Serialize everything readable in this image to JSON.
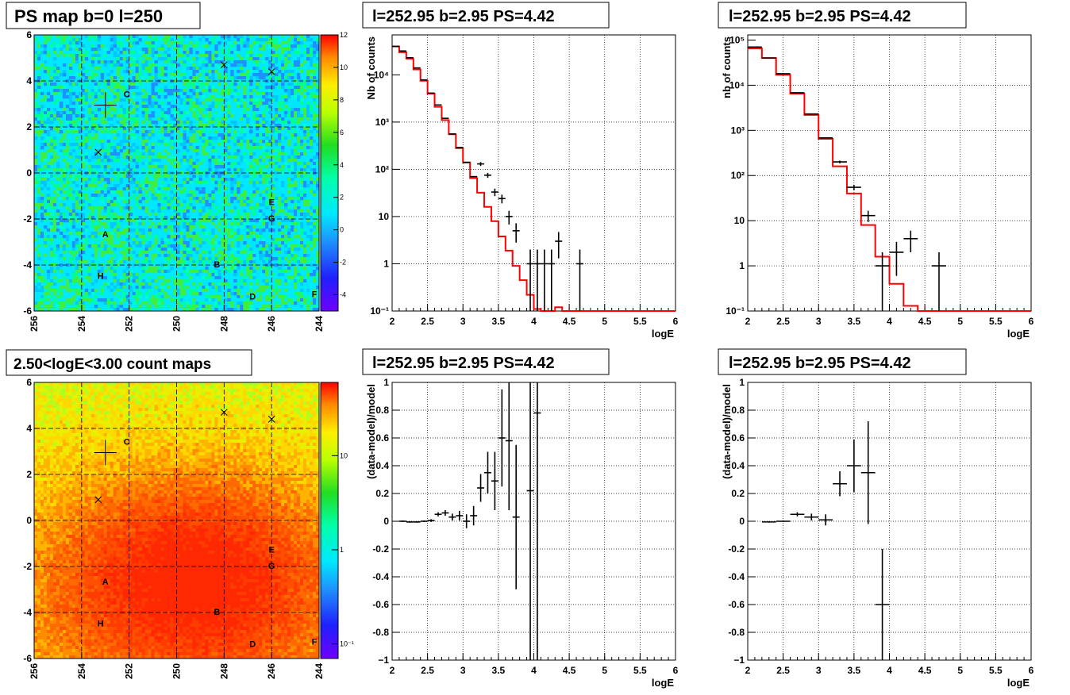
{
  "panels": {
    "ps_map": {
      "title": "PS map b=0 l=250",
      "x_ticks": [
        "256",
        "254",
        "252",
        "250",
        "248",
        "246",
        "244"
      ],
      "y_ticks": [
        "6",
        "4",
        "2",
        "0",
        "-2",
        "-4",
        "-6"
      ],
      "colorbar_ticks": [
        "12",
        "10",
        "8",
        "6",
        "4",
        "2",
        "0",
        "-2",
        "-4"
      ],
      "labels": [
        "A",
        "B",
        "C",
        "D",
        "E",
        "F",
        "G",
        "H"
      ]
    },
    "count_map": {
      "title": "2.50<logE<3.00 count maps",
      "x_ticks": [
        "256",
        "254",
        "252",
        "250",
        "248",
        "246",
        "244"
      ],
      "y_ticks": [
        "6",
        "4",
        "2",
        "0",
        "-2",
        "-4",
        "-6"
      ],
      "colorbar_ticks": [
        "10",
        "1",
        "10⁻¹"
      ],
      "labels": [
        "A",
        "B",
        "C",
        "D",
        "E",
        "F",
        "G",
        "H"
      ]
    },
    "spectrum_1": {
      "title": "l=252.95 b=2.95 PS=4.42",
      "xlabel": "logE",
      "ylabel": "Nb of counts",
      "x_ticks": [
        "2",
        "2.5",
        "3",
        "3.5",
        "4",
        "4.5",
        "5",
        "5.5",
        "6"
      ],
      "y_ticks": [
        "10⁻¹",
        "1",
        "10",
        "10²",
        "10³",
        "10⁴"
      ]
    },
    "spectrum_2": {
      "title": "l=252.95 b=2.95 PS=4.42",
      "xlabel": "logE",
      "ylabel": "nb of counts",
      "x_ticks": [
        "2",
        "2.5",
        "3",
        "3.5",
        "4",
        "4.5",
        "5",
        "5.5",
        "6"
      ],
      "y_ticks": [
        "10⁻¹",
        "1",
        "10",
        "10²",
        "10³",
        "10⁴",
        "10⁵"
      ]
    },
    "residual_1": {
      "title": "l=252.95 b=2.95 PS=4.42",
      "xlabel": "logE",
      "ylabel": "(data-model)/model",
      "x_ticks": [
        "2",
        "2.5",
        "3",
        "3.5",
        "4",
        "4.5",
        "5",
        "5.5",
        "6"
      ],
      "y_ticks": [
        "1",
        "0.8",
        "0.6",
        "0.4",
        "0.2",
        "0",
        "-0.2",
        "-0.4",
        "-0.6",
        "-0.8",
        "−1"
      ]
    },
    "residual_2": {
      "title": "l=252.95 b=2.95 PS=4.42",
      "xlabel": "logE",
      "ylabel": "(data-model)/model",
      "x_ticks": [
        "2",
        "2.5",
        "3",
        "3.5",
        "4",
        "4.5",
        "5",
        "5.5",
        "6"
      ],
      "y_ticks": [
        "1",
        "0.8",
        "0.6",
        "0.4",
        "0.2",
        "0",
        "-0.2",
        "-0.4",
        "-0.6",
        "-0.8",
        "−1"
      ]
    }
  },
  "colors": {
    "model_line": "#ff0000",
    "data_points": "#000000"
  },
  "chart_data": [
    {
      "type": "heatmap",
      "title": "PS map b=0 l=250",
      "xlim": [
        256,
        244
      ],
      "ylim": [
        -6,
        6
      ],
      "zlim": [
        -5,
        12
      ],
      "grid": true,
      "markers_plus": [
        {
          "l": 253.0,
          "b": 2.95
        }
      ],
      "markers_cross": [
        {
          "l": 253.3,
          "b": 0.9
        },
        {
          "l": 248.0,
          "b": 4.7
        },
        {
          "l": 246.0,
          "b": 4.4
        }
      ],
      "source_labels": [
        {
          "text": "A",
          "l": 253.0,
          "b": -2.7
        },
        {
          "text": "B",
          "l": 248.3,
          "b": -4.0
        },
        {
          "text": "C",
          "l": 252.1,
          "b": 3.4
        },
        {
          "text": "D",
          "l": 246.8,
          "b": -5.4
        },
        {
          "text": "E",
          "l": 246.0,
          "b": -1.3
        },
        {
          "text": "F",
          "l": 244.2,
          "b": -5.3
        },
        {
          "text": "G",
          "l": 246.0,
          "b": -2.0
        },
        {
          "text": "H",
          "l": 253.2,
          "b": -4.5
        }
      ]
    },
    {
      "type": "heatmap",
      "title": "2.50<logE<3.00 count maps",
      "xlim": [
        256,
        244
      ],
      "ylim": [
        -6,
        6
      ],
      "zscale": "log",
      "zlim": [
        0.07,
        60
      ],
      "grid": true,
      "markers_plus": [
        {
          "l": 253.0,
          "b": 2.95
        }
      ],
      "markers_cross": [
        {
          "l": 253.3,
          "b": 0.9
        },
        {
          "l": 248.0,
          "b": 4.7
        },
        {
          "l": 246.0,
          "b": 4.4
        }
      ],
      "source_labels": [
        {
          "text": "A",
          "l": 253.0,
          "b": -2.7
        },
        {
          "text": "B",
          "l": 248.3,
          "b": -4.0
        },
        {
          "text": "C",
          "l": 252.1,
          "b": 3.4
        },
        {
          "text": "D",
          "l": 246.8,
          "b": -5.4
        },
        {
          "text": "E",
          "l": 246.0,
          "b": -1.3
        },
        {
          "text": "F",
          "l": 244.2,
          "b": -5.3
        },
        {
          "text": "G",
          "l": 246.0,
          "b": -2.0
        },
        {
          "text": "H",
          "l": 253.2,
          "b": -4.5
        }
      ]
    },
    {
      "type": "line",
      "title": "l=252.95 b=2.95 PS=4.42",
      "xlabel": "logE",
      "ylabel": "Nb of counts",
      "xlim": [
        2,
        6
      ],
      "ylim": [
        0.1,
        70000
      ],
      "yscale": "log",
      "grid": true,
      "model_step": {
        "edges": [
          2.0,
          2.1,
          2.2,
          2.3,
          2.4,
          2.5,
          2.6,
          2.7,
          2.8,
          2.9,
          3.0,
          3.1,
          3.2,
          3.3,
          3.4,
          3.5,
          3.6,
          3.7,
          3.8,
          3.9,
          4.0,
          4.1,
          4.2,
          4.3,
          4.4,
          6.0
        ],
        "values": [
          40000,
          30000,
          22000,
          13000,
          7500,
          4000,
          2100,
          1100,
          550,
          280,
          140,
          65,
          32,
          16,
          8,
          3.8,
          1.9,
          0.9,
          0.45,
          0.22,
          0.11,
          0.05,
          0.03,
          0.12,
          0.1
        ]
      },
      "data": [
        {
          "x": 2.05,
          "y": 40000,
          "xerr": 0.05
        },
        {
          "x": 2.15,
          "y": 32000,
          "xerr": 0.05
        },
        {
          "x": 2.25,
          "y": 23000,
          "xerr": 0.05
        },
        {
          "x": 2.35,
          "y": 14000,
          "xerr": 0.05
        },
        {
          "x": 2.45,
          "y": 7800,
          "xerr": 0.05
        },
        {
          "x": 2.55,
          "y": 4100,
          "xerr": 0.05
        },
        {
          "x": 2.65,
          "y": 2300,
          "xerr": 0.05
        },
        {
          "x": 2.75,
          "y": 1200,
          "xerr": 0.05
        },
        {
          "x": 2.85,
          "y": 560,
          "xerr": 0.05
        },
        {
          "x": 2.95,
          "y": 290,
          "xerr": 0.05
        },
        {
          "x": 3.05,
          "y": 140,
          "xerr": 0.05
        },
        {
          "x": 3.15,
          "y": 70,
          "xerr": 0.05
        },
        {
          "x": 3.25,
          "y": 130,
          "xerr": 0.05,
          "yerr_lo": 12,
          "yerr_hi": 12
        },
        {
          "x": 3.35,
          "y": 75,
          "xerr": 0.05,
          "yerr_lo": 9,
          "yerr_hi": 9
        },
        {
          "x": 3.45,
          "y": 33,
          "xerr": 0.05,
          "yerr_lo": 6,
          "yerr_hi": 6
        },
        {
          "x": 3.55,
          "y": 24,
          "xerr": 0.05,
          "yerr_lo": 5,
          "yerr_hi": 5
        },
        {
          "x": 3.65,
          "y": 10,
          "xerr": 0.05,
          "yerr_lo": 3.2,
          "yerr_hi": 3.2
        },
        {
          "x": 3.75,
          "y": 5,
          "xerr": 0.05,
          "yerr_lo": 2.2,
          "yerr_hi": 2.2
        },
        {
          "x": 3.95,
          "y": 1,
          "xerr": 0.05,
          "yerr_lo": 0.99,
          "yerr_hi": 1
        },
        {
          "x": 4.05,
          "y": 1,
          "xerr": 0.05,
          "yerr_lo": 0.99,
          "yerr_hi": 1
        },
        {
          "x": 4.15,
          "y": 1,
          "xerr": 0.05,
          "yerr_lo": 0.99,
          "yerr_hi": 1
        },
        {
          "x": 4.25,
          "y": 1,
          "xerr": 0.05,
          "yerr_lo": 0.99,
          "yerr_hi": 1
        },
        {
          "x": 4.35,
          "y": 3,
          "xerr": 0.05,
          "yerr_lo": 1.7,
          "yerr_hi": 1.7
        },
        {
          "x": 4.65,
          "y": 1,
          "xerr": 0.05,
          "yerr_lo": 0.99,
          "yerr_hi": 1
        }
      ]
    },
    {
      "type": "line",
      "title": "l=252.95 b=2.95 PS=4.42",
      "xlabel": "logE",
      "ylabel": "nb of counts",
      "xlim": [
        2,
        6
      ],
      "ylim": [
        0.1,
        130000
      ],
      "yscale": "log",
      "grid": true,
      "model_step": {
        "edges": [
          2.0,
          2.2,
          2.4,
          2.6,
          2.8,
          3.0,
          3.2,
          3.4,
          3.6,
          3.8,
          4.0,
          4.2,
          4.4,
          6.0
        ],
        "values": [
          65000,
          40000,
          17000,
          6500,
          2200,
          650,
          160,
          40,
          8,
          1.6,
          0.4,
          0.13,
          0.1
        ]
      },
      "data": [
        {
          "x": 2.1,
          "y": 70000,
          "xerr": 0.1
        },
        {
          "x": 2.3,
          "y": 40000,
          "xerr": 0.1
        },
        {
          "x": 2.5,
          "y": 18000,
          "xerr": 0.1
        },
        {
          "x": 2.7,
          "y": 6800,
          "xerr": 0.1
        },
        {
          "x": 2.9,
          "y": 2300,
          "xerr": 0.1
        },
        {
          "x": 3.1,
          "y": 680,
          "xerr": 0.1
        },
        {
          "x": 3.3,
          "y": 200,
          "xerr": 0.1,
          "yerr_lo": 14,
          "yerr_hi": 14
        },
        {
          "x": 3.5,
          "y": 55,
          "xerr": 0.1,
          "yerr_lo": 7.4,
          "yerr_hi": 7.4
        },
        {
          "x": 3.7,
          "y": 13,
          "xerr": 0.1,
          "yerr_lo": 3.6,
          "yerr_hi": 3.6
        },
        {
          "x": 3.9,
          "y": 1,
          "xerr": 0.1,
          "yerr_lo": 0.99,
          "yerr_hi": 1
        },
        {
          "x": 4.1,
          "y": 2,
          "xerr": 0.1,
          "yerr_lo": 1.4,
          "yerr_hi": 1.4
        },
        {
          "x": 4.3,
          "y": 4,
          "xerr": 0.1,
          "yerr_lo": 2,
          "yerr_hi": 2
        },
        {
          "x": 4.7,
          "y": 1,
          "xerr": 0.1,
          "yerr_lo": 0.99,
          "yerr_hi": 1
        }
      ]
    },
    {
      "type": "scatter",
      "title": "l=252.95 b=2.95 PS=4.42",
      "xlabel": "logE",
      "ylabel": "(data-model)/model",
      "xlim": [
        2,
        6
      ],
      "ylim": [
        -1,
        1
      ],
      "grid": true,
      "data": [
        {
          "x": 2.15,
          "y": 0.0,
          "xerr": 0.05,
          "yerr": 0.005
        },
        {
          "x": 2.25,
          "y": -0.005,
          "xerr": 0.05,
          "yerr": 0.005
        },
        {
          "x": 2.35,
          "y": -0.005,
          "xerr": 0.05,
          "yerr": 0.005
        },
        {
          "x": 2.45,
          "y": 0.0,
          "xerr": 0.05,
          "yerr": 0.005
        },
        {
          "x": 2.55,
          "y": 0.005,
          "xerr": 0.05,
          "yerr": 0.01
        },
        {
          "x": 2.65,
          "y": 0.05,
          "xerr": 0.05,
          "yerr": 0.015
        },
        {
          "x": 2.75,
          "y": 0.06,
          "xerr": 0.05,
          "yerr": 0.02
        },
        {
          "x": 2.85,
          "y": 0.03,
          "xerr": 0.05,
          "yerr": 0.025
        },
        {
          "x": 2.95,
          "y": 0.04,
          "xerr": 0.05,
          "yerr": 0.035
        },
        {
          "x": 3.05,
          "y": 0.0,
          "xerr": 0.05,
          "yerr": 0.05
        },
        {
          "x": 3.15,
          "y": 0.04,
          "xerr": 0.05,
          "yerr": 0.07
        },
        {
          "x": 3.25,
          "y": 0.24,
          "xerr": 0.05,
          "yerr": 0.1
        },
        {
          "x": 3.35,
          "y": 0.35,
          "xerr": 0.05,
          "yerr": 0.15
        },
        {
          "x": 3.45,
          "y": 0.29,
          "xerr": 0.05,
          "yerr": 0.21
        },
        {
          "x": 3.55,
          "y": 0.6,
          "xerr": 0.05,
          "yerr": 0.35
        },
        {
          "x": 3.65,
          "y": 0.58,
          "xerr": 0.05,
          "yerr": 0.5
        },
        {
          "x": 3.75,
          "y": 0.03,
          "xerr": 0.05,
          "yerr": 0.52
        },
        {
          "x": 3.95,
          "y": 0.22,
          "xerr": 0.05,
          "yerr": 1.5
        },
        {
          "x": 4.05,
          "y": 0.78,
          "xerr": 0.05,
          "yerr": 1.9
        }
      ]
    },
    {
      "type": "scatter",
      "title": "l=252.95 b=2.95 PS=4.42",
      "xlabel": "logE",
      "ylabel": "(data-model)/model",
      "xlim": [
        2,
        6
      ],
      "ylim": [
        -1,
        1
      ],
      "grid": true,
      "data": [
        {
          "x": 2.3,
          "y": -0.005,
          "xerr": 0.1,
          "yerr": 0.005
        },
        {
          "x": 2.5,
          "y": 0.0,
          "xerr": 0.1,
          "yerr": 0.005
        },
        {
          "x": 2.7,
          "y": 0.05,
          "xerr": 0.1,
          "yerr": 0.015
        },
        {
          "x": 2.9,
          "y": 0.03,
          "xerr": 0.1,
          "yerr": 0.025
        },
        {
          "x": 3.1,
          "y": 0.01,
          "xerr": 0.1,
          "yerr": 0.04
        },
        {
          "x": 3.3,
          "y": 0.27,
          "xerr": 0.1,
          "yerr": 0.09
        },
        {
          "x": 3.5,
          "y": 0.4,
          "xerr": 0.1,
          "yerr": 0.19
        },
        {
          "x": 3.7,
          "y": 0.35,
          "xerr": 0.1,
          "yerr": 0.37
        },
        {
          "x": 3.9,
          "y": -0.6,
          "xerr": 0.1,
          "yerr": 0.4
        }
      ]
    }
  ]
}
